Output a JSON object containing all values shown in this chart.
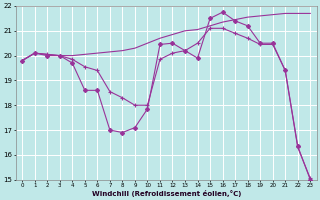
{
  "xlabel": "Windchill (Refroidissement éolien,°C)",
  "xlim": [
    -0.5,
    23.5
  ],
  "ylim": [
    15,
    22
  ],
  "yticks": [
    15,
    16,
    17,
    18,
    19,
    20,
    21,
    22
  ],
  "xticks": [
    0,
    1,
    2,
    3,
    4,
    5,
    6,
    7,
    8,
    9,
    10,
    11,
    12,
    13,
    14,
    15,
    16,
    17,
    18,
    19,
    20,
    21,
    22,
    23
  ],
  "bg_color": "#c0e8e8",
  "grid_color": "#ffffff",
  "line_color": "#993399",
  "s1_x": [
    0,
    1,
    2,
    3,
    4,
    5,
    6,
    7,
    8,
    9,
    10,
    11,
    12,
    13,
    14,
    15,
    16,
    17,
    18,
    19,
    20,
    21,
    22,
    23
  ],
  "s1_y": [
    19.8,
    20.1,
    20.0,
    20.0,
    19.7,
    18.6,
    18.6,
    17.0,
    16.9,
    17.1,
    17.85,
    20.45,
    20.5,
    20.2,
    19.9,
    21.5,
    21.75,
    21.4,
    21.2,
    20.5,
    20.5,
    19.4,
    16.35,
    15.0
  ],
  "s2_x": [
    0,
    1,
    2,
    3,
    4,
    5,
    6,
    7,
    8,
    9,
    10,
    11,
    12,
    13,
    14,
    15,
    16,
    17,
    18,
    19,
    20,
    21,
    22,
    23
  ],
  "s2_y": [
    19.8,
    20.1,
    20.05,
    20.0,
    19.85,
    19.55,
    19.4,
    18.55,
    18.3,
    18.0,
    18.0,
    19.85,
    20.1,
    20.2,
    20.5,
    21.1,
    21.1,
    20.9,
    20.7,
    20.45,
    20.45,
    19.4,
    16.3,
    15.05
  ],
  "s3_x": [
    0,
    1,
    2,
    3,
    4,
    5,
    6,
    7,
    8,
    9,
    10,
    11,
    12,
    13,
    14,
    15,
    16,
    17,
    18,
    19,
    20,
    21,
    22,
    23
  ],
  "s3_y": [
    19.8,
    20.1,
    20.05,
    20.0,
    20.0,
    20.05,
    20.1,
    20.15,
    20.2,
    20.3,
    20.5,
    20.7,
    20.85,
    21.0,
    21.05,
    21.2,
    21.35,
    21.45,
    21.55,
    21.6,
    21.65,
    21.7,
    21.7,
    21.7
  ]
}
